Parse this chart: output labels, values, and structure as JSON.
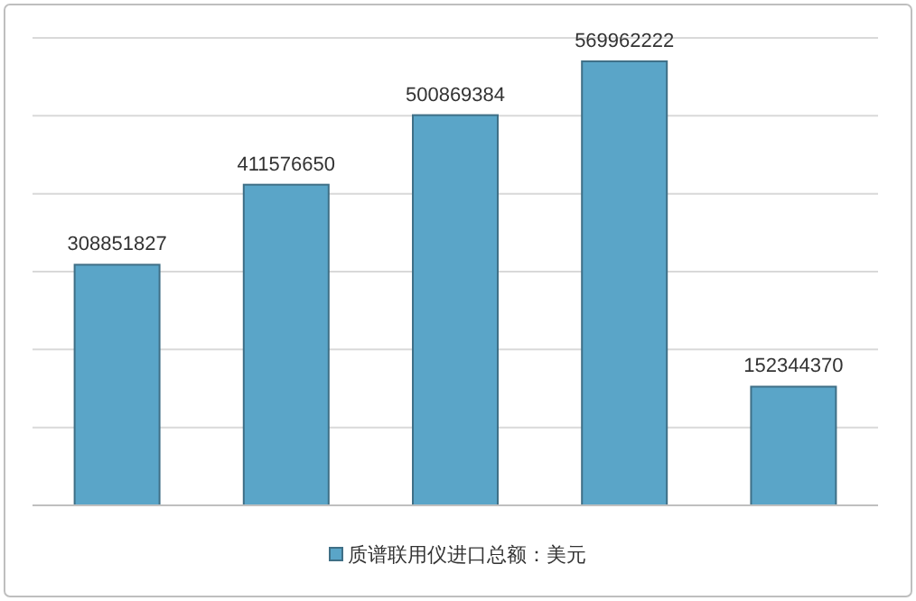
{
  "chart_data": {
    "type": "bar",
    "categories": [
      null,
      null,
      null,
      null,
      null
    ],
    "series": [
      {
        "name": "质谱联用仪进口总额：美元",
        "color": "#5aa5c8",
        "values": [
          308851827,
          411576650,
          500869384,
          569962222,
          152344370
        ]
      }
    ],
    "ylim": [
      0,
      600000000
    ],
    "yticks": [
      {
        "value": 0,
        "label": null
      },
      {
        "value": 100000000,
        "label": null
      },
      {
        "value": 200000000,
        "label": null
      },
      {
        "value": 300000000,
        "label": null
      },
      {
        "value": 400000000,
        "label": null
      },
      {
        "value": 500000000,
        "label": null
      },
      {
        "value": 600000000,
        "label": null
      }
    ],
    "grid": "y",
    "legend": "bottom",
    "data_labels": true
  }
}
